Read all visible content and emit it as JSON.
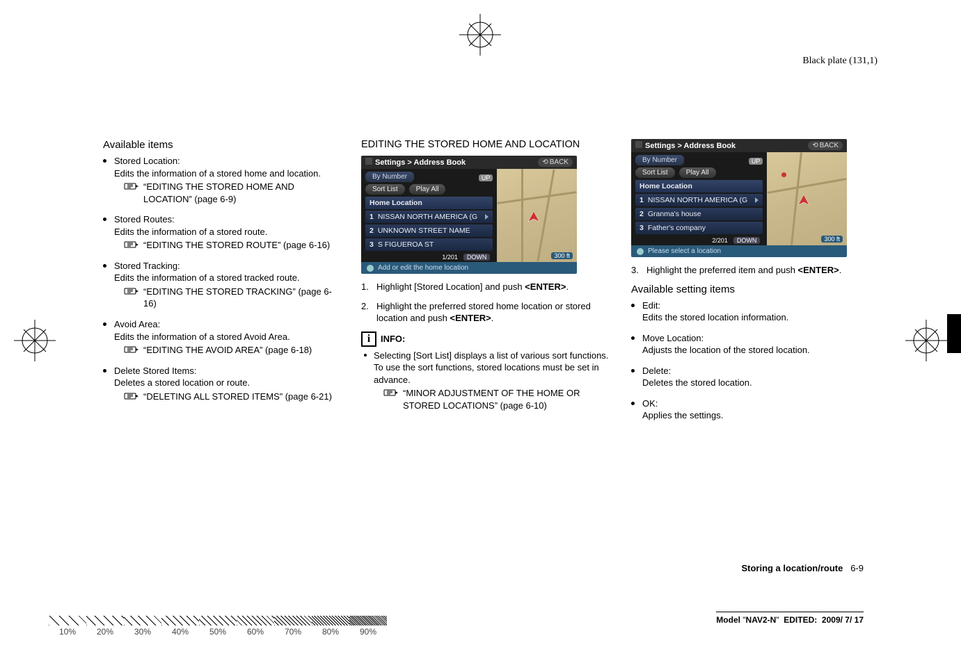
{
  "meta": {
    "black_plate": "Black plate (131,1)",
    "page_footer_section": "Storing a location/route",
    "page_footer_num": "6-9",
    "model_line": "Model \"NAV2-N\"  EDITED:  2009/ 7/ 17"
  },
  "col1": {
    "heading": "Available items",
    "items": [
      {
        "title": "Stored Location:",
        "body": "Edits the information of a stored home and location.",
        "ref": "“EDITING THE STORED HOME AND LOCATION” (page 6-9)"
      },
      {
        "title": "Stored Routes:",
        "body": "Edits the information of a stored route.",
        "ref": "“EDITING THE STORED ROUTE” (page 6-16)"
      },
      {
        "title": "Stored Tracking:",
        "body": "Edits the information of a stored tracked route.",
        "ref": "“EDITING THE STORED TRACKING” (page 6-16)"
      },
      {
        "title": "Avoid Area:",
        "body": "Edits the information of a stored Avoid Area.",
        "ref": "“EDITING THE AVOID AREA” (page 6-18)"
      },
      {
        "title": "Delete Stored Items:",
        "body": "Deletes a stored location or route.",
        "ref": "“DELETING ALL STORED ITEMS” (page 6-21)"
      }
    ]
  },
  "col2": {
    "heading": "EDITING THE STORED HOME AND LOCATION",
    "screenshot": {
      "title_path": "Settings > Address Book",
      "back_label": "BACK",
      "tab_label": "By Number",
      "pills": [
        "Sort List",
        "Play All"
      ],
      "home_label": "Home Location",
      "rows": [
        {
          "n": "1",
          "label": "NISSAN NORTH AMERICA (G",
          "play": true
        },
        {
          "n": "2",
          "label": "UNKNOWN STREET NAME",
          "play": false
        },
        {
          "n": "3",
          "label": "S FIGUEROA ST",
          "play": false
        }
      ],
      "page_indicator": "1/201",
      "down_label": "DOWN",
      "up_label": "UP",
      "scale_label": "300 ft",
      "status_text": "Add or edit the home location"
    },
    "steps": [
      "Highlight [Stored Location] and push <ENTER>.",
      "Highlight the preferred stored home location or stored location and push <ENTER>."
    ],
    "info_label": "INFO:",
    "info_bullet": "Selecting [Sort List] displays a list of various sort functions.",
    "info_body": "To use the sort functions, stored locations must be set in advance.",
    "info_ref": "“MINOR ADJUSTMENT OF THE HOME OR STORED LOCATIONS” (page 6-10)"
  },
  "col3": {
    "screenshot": {
      "title_path": "Settings > Address Book",
      "back_label": "BACK",
      "tab_label": "By Number",
      "pills": [
        "Sort List",
        "Play All"
      ],
      "home_label": "Home Location",
      "rows": [
        {
          "n": "1",
          "label": "NISSAN NORTH AMERICA (G",
          "play": true
        },
        {
          "n": "2",
          "label": "Granma's house",
          "play": false
        },
        {
          "n": "3",
          "label": "Father's company",
          "play": false
        }
      ],
      "page_indicator": "2/201",
      "down_label": "DOWN",
      "up_label": "UP",
      "scale_label": "300 ft",
      "status_text": "Please select a location"
    },
    "step3": "Highlight the preferred item and push <ENTER>.",
    "subheading": "Available setting items",
    "items": [
      {
        "title": "Edit:",
        "body": "Edits the stored location information."
      },
      {
        "title": "Move Location:",
        "body": "Adjusts the location of the stored location."
      },
      {
        "title": "Delete:",
        "body": "Deletes the stored location."
      },
      {
        "title": "OK:",
        "body": "Applies the settings."
      }
    ]
  },
  "screen_strip": [
    "10%",
    "20%",
    "30%",
    "40%",
    "50%",
    "60%",
    "70%",
    "80%",
    "90%"
  ],
  "colors": {
    "ss_titlebar": "#2a2a2a",
    "ss_item_bg": "#1a2842",
    "ss_status": "#2a5a7a",
    "map_bg": "#c9b98c"
  }
}
